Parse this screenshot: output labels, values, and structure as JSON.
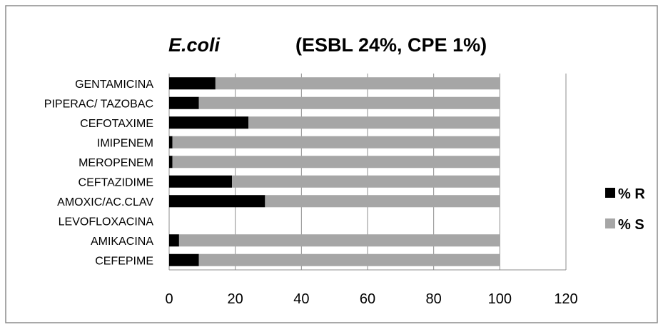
{
  "chart_data": {
    "type": "bar",
    "orientation": "horizontal",
    "stacked": true,
    "title_italic": "E.coli",
    "title": "(ESBL 24%, CPE 1%)",
    "categories": [
      "GENTAMICINA",
      "PIPERAC/ TAZOBAC",
      "CEFOTAXIME",
      "IMIPENEM",
      "MEROPENEM",
      "CEFTAZIDIME",
      "AMOXIC/AC.CLAV",
      "LEVOFLOXACINA",
      "AMIKACINA",
      "CEFEPIME"
    ],
    "series": [
      {
        "name": "% R",
        "color": "#000000",
        "values": [
          14,
          9,
          24,
          1,
          1,
          19,
          29,
          0,
          3,
          9
        ]
      },
      {
        "name": "% S",
        "color": "#a6a6a6",
        "values": [
          86,
          91,
          76,
          99,
          99,
          81,
          71,
          0,
          97,
          91
        ]
      }
    ],
    "xlim": [
      0,
      120
    ],
    "xticks": [
      "0",
      "20",
      "40",
      "60",
      "80",
      "100",
      "120"
    ],
    "grid": "vertical",
    "legend_position": "right"
  }
}
